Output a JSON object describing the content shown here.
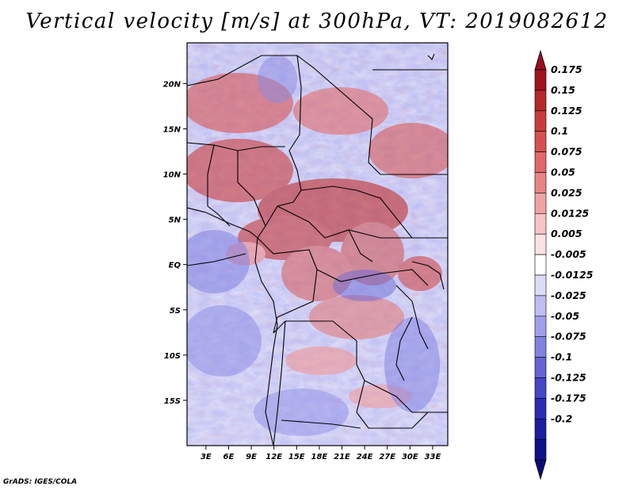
{
  "title": "Vertical velocity [m/s] at 300hPa, VT: 2019082612",
  "footer": "GrADS: IGES/COLA",
  "map": {
    "lat_labels": [
      "20N",
      "15N",
      "10N",
      "5N",
      "EQ",
      "5S",
      "10S",
      "15S"
    ],
    "lat_values": [
      20,
      15,
      10,
      5,
      0,
      -5,
      -10,
      -15
    ],
    "lon_labels": [
      "3E",
      "6E",
      "9E",
      "12E",
      "15E",
      "18E",
      "21E",
      "24E",
      "27E",
      "30E",
      "33E"
    ],
    "lon_values": [
      3,
      6,
      9,
      12,
      15,
      18,
      21,
      24,
      27,
      30,
      33
    ],
    "lat_range": [
      -20,
      24.5
    ],
    "lon_range": [
      0.5,
      35
    ]
  },
  "colorbar": {
    "labels": [
      "0.175",
      "0.15",
      "0.125",
      "0.1",
      "0.075",
      "0.05",
      "0.025",
      "0.0125",
      "0.005",
      "-0.005",
      "-0.0125",
      "-0.025",
      "-0.05",
      "-0.075",
      "-0.1",
      "-0.125",
      "-0.175",
      "-0.2"
    ],
    "colors": [
      "#a0141e",
      "#b4282a",
      "#c83c3c",
      "#d65050",
      "#e06868",
      "#e88484",
      "#f0a2a2",
      "#f6c4c4",
      "#fbe2e2",
      "#ffffff",
      "#dcdcf8",
      "#bebef2",
      "#a0a0ea",
      "#8282e0",
      "#6464d4",
      "#4646c6",
      "#2c2cb4",
      "#1c1ca0",
      "#10108a"
    ],
    "top_color": "#961020",
    "bottom_color": "#0c0c78"
  }
}
